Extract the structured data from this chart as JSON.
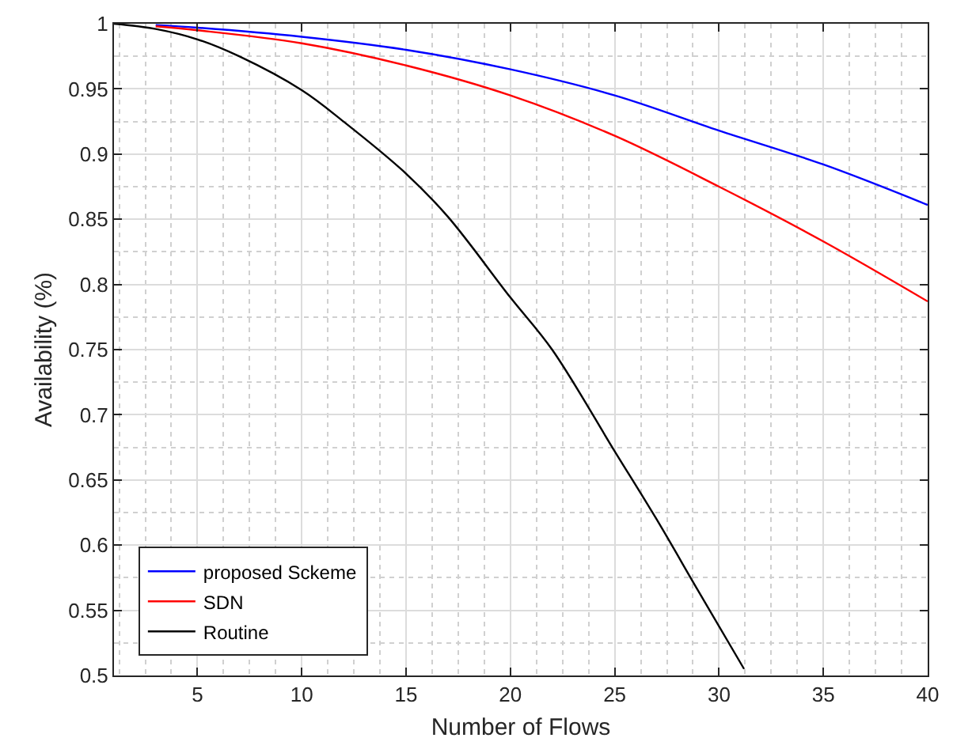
{
  "chart_data": {
    "type": "line",
    "xlabel": "Number of Flows",
    "ylabel": "Availability (%)",
    "xlim": [
      1,
      40
    ],
    "xticks": [
      5,
      10,
      15,
      20,
      25,
      30,
      35,
      40
    ],
    "ylim": [
      0.5,
      1
    ],
    "yticks": [
      0.5,
      0.55,
      0.6,
      0.65,
      0.7,
      0.75,
      0.8,
      0.85,
      0.9,
      0.95,
      1
    ],
    "grid": true,
    "legend": "bottom left",
    "line_style": "solid",
    "marker": "none",
    "series": [
      {
        "name": "proposed Sckeme",
        "color": "#0000ff",
        "x": [
          3,
          5,
          10,
          15,
          20,
          25,
          30,
          35,
          40
        ],
        "values": [
          0.999,
          0.997,
          0.99,
          0.98,
          0.965,
          0.945,
          0.918,
          0.892,
          0.861
        ]
      },
      {
        "name": "SDN",
        "color": "#ff0000",
        "x": [
          3,
          5,
          10,
          15,
          20,
          25,
          30,
          35,
          40
        ],
        "values": [
          0.998,
          0.995,
          0.985,
          0.968,
          0.945,
          0.914,
          0.875,
          0.833,
          0.787
        ]
      },
      {
        "name": "Routine",
        "color": "#000000",
        "x": [
          1,
          3,
          5,
          7,
          10,
          12,
          15,
          17,
          20,
          22,
          25,
          27,
          29,
          31.2
        ],
        "values": [
          1,
          0.996,
          0.988,
          0.975,
          0.949,
          0.925,
          0.885,
          0.852,
          0.79,
          0.75,
          0.672,
          0.62,
          0.565,
          0.505
        ]
      }
    ]
  }
}
